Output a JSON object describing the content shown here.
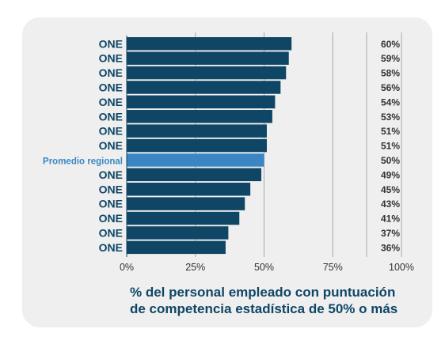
{
  "chart_data": {
    "type": "bar",
    "orientation": "horizontal",
    "categories": [
      "ONE",
      "ONE",
      "ONE",
      "ONE",
      "ONE",
      "ONE",
      "ONE",
      "ONE",
      "Promedio regional",
      "ONE",
      "ONE",
      "ONE",
      "ONE",
      "ONE",
      "ONE"
    ],
    "values": [
      60,
      59,
      58,
      56,
      54,
      53,
      51,
      51,
      50,
      49,
      45,
      43,
      41,
      37,
      36
    ],
    "value_labels": [
      "60%",
      "59%",
      "58%",
      "56%",
      "54%",
      "53%",
      "51%",
      "51%",
      "50%",
      "49%",
      "45%",
      "43%",
      "41%",
      "37%",
      "36%"
    ],
    "highlight_index": 8,
    "xlim": [
      0,
      100
    ],
    "xticks": [
      0,
      25,
      50,
      75,
      100
    ],
    "xtick_labels": [
      "0%",
      "25%",
      "50%",
      "75%",
      "100%"
    ],
    "grid": "vertical",
    "xlabel_lines": [
      "% del personal empleado con puntuación",
      "de competencia estadística de 50% o más"
    ],
    "colors": {
      "bar": "#0f4666",
      "highlight_bar": "#3a86c4",
      "highlight_label": "#3a86c4",
      "label": "#0f4666",
      "value_label": "#333333",
      "grid": "#a8a8a8",
      "card": "#efefef"
    }
  }
}
